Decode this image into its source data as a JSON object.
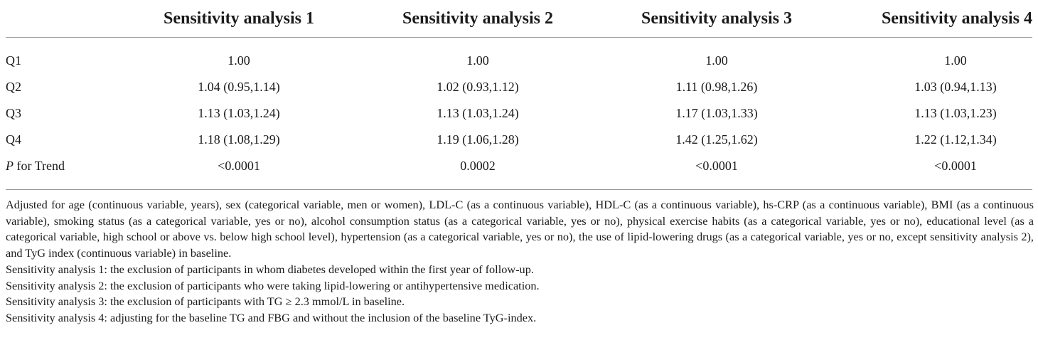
{
  "table": {
    "columns": [
      "",
      "Sensitivity analysis 1",
      "Sensitivity analysis 2",
      "Sensitivity analysis 3",
      "Sensitivity analysis 4"
    ],
    "rows": [
      {
        "label": "Q1",
        "values": [
          "1.00",
          "1.00",
          "1.00",
          "1.00"
        ]
      },
      {
        "label": "Q2",
        "values": [
          "1.04 (0.95,1.14)",
          "1.02 (0.93,1.12)",
          "1.11 (0.98,1.26)",
          "1.03 (0.94,1.13)"
        ]
      },
      {
        "label": "Q3",
        "values": [
          "1.13 (1.03,1.24)",
          "1.13 (1.03,1.24)",
          "1.17 (1.03,1.33)",
          "1.13 (1.03,1.23)"
        ]
      },
      {
        "label": "Q4",
        "values": [
          "1.18 (1.08,1.29)",
          "1.19 (1.06,1.28)",
          "1.42 (1.25,1.62)",
          "1.22 (1.12,1.34)"
        ]
      },
      {
        "label_italic": "P",
        "label": " for Trend",
        "values": [
          "<0.0001",
          "0.0002",
          "<0.0001",
          "<0.0001"
        ]
      }
    ]
  },
  "notes": {
    "adjusted": "Adjusted for age (continuous variable, years), sex (categorical variable, men or women), LDL-C (as a continuous variable), HDL-C (as a continuous variable), hs-CRP (as a continuous variable), BMI (as a continuous variable), smoking status (as a categorical variable, yes or no), alcohol consumption status (as a categorical variable, yes or no), physical exercise habits (as a categorical variable, yes or no), educational level (as a categorical variable, high school or above vs. below high school level), hypertension (as a categorical variable, yes or no), the use of lipid-lowering drugs (as a categorical variable, yes or no, except sensitivity analysis 2), and TyG index (continuous variable) in baseline.",
    "sa1": "Sensitivity analysis 1: the exclusion of participants in whom diabetes developed within the first year of follow-up.",
    "sa2": "Sensitivity analysis 2: the exclusion of participants who were taking lipid-lowering or antihypertensive medication.",
    "sa3": "Sensitivity analysis 3: the exclusion of participants with TG ≥ 2.3 mmol/L in baseline.",
    "sa4": "Sensitivity analysis 4: adjusting for the baseline TG and FBG and without the inclusion of the baseline TyG-index."
  }
}
